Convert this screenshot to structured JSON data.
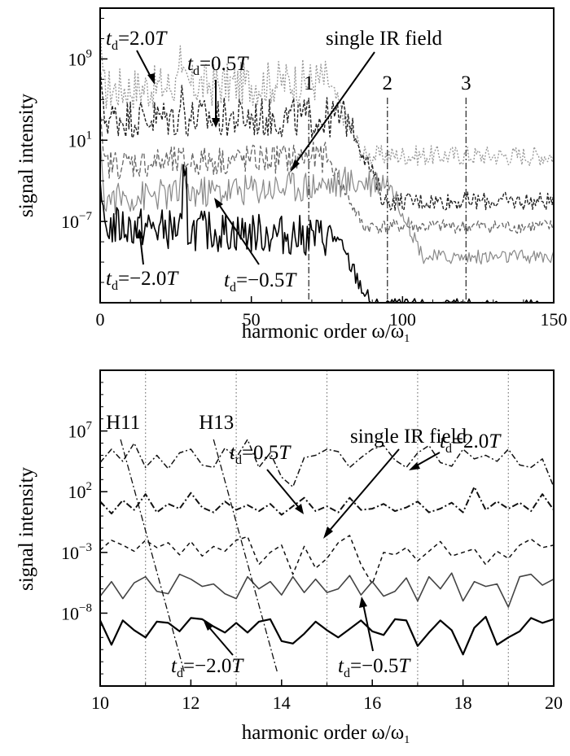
{
  "chart_data": [
    {
      "type": "line",
      "panel": "top",
      "xlabel": "harmonic order ω/ω",
      "xlabel_sub": "1",
      "ylabel": "signal intensity",
      "xlim": [
        0,
        150
      ],
      "ylog_range": [
        -15,
        14
      ],
      "x_ticks": [
        0,
        50,
        100,
        150
      ],
      "y_ticks": [
        {
          "exp": 9,
          "label": "10",
          "sup": "9"
        },
        {
          "exp": 1,
          "label": "10",
          "sup": "1"
        },
        {
          "exp": -7,
          "label": "10",
          "sup": "−7"
        }
      ],
      "series": [
        {
          "name": "t_d=2.0T",
          "color": "#9a9a9a",
          "dash": "2,2",
          "width": 1.4,
          "base": 6.5,
          "plateau_slope": 0.012,
          "cutoff": 75,
          "floor": -0.5,
          "noise": 2.2,
          "spikes": [
            {
              "x": 26,
              "h": 3
            }
          ]
        },
        {
          "name": "t_d=0.5T",
          "color": "#222222",
          "dash": "4,2",
          "width": 1.4,
          "base": 3.2,
          "plateau_slope": 0.0,
          "cutoff": 82,
          "floor": -5.0,
          "noise": 2.0,
          "spikes": [
            {
              "x": 27,
              "h": 2
            }
          ]
        },
        {
          "name": "single IR field",
          "color": "#666666",
          "dash": "6,3",
          "width": 1.3,
          "base": -1.0,
          "plateau_slope": 0.01,
          "cutoff": 75,
          "floor": -7.5,
          "noise": 1.5,
          "spikes": []
        },
        {
          "name": "t_d=-0.5T",
          "color": "#888888",
          "dash": "",
          "width": 1.2,
          "base": -4.0,
          "plateau_slope": 0.02,
          "cutoff": 95,
          "floor": -10.5,
          "noise": 1.6,
          "spikes": [
            {
              "x": 27,
              "h": 2
            }
          ]
        },
        {
          "name": "t_d=-2.0T",
          "color": "#000000",
          "dash": "",
          "width": 1.6,
          "base": -8.0,
          "plateau_slope": -0.015,
          "cutoff": 78,
          "floor": -15.5,
          "noise": 2.0,
          "spikes": [
            {
              "x": 28,
              "h": 4.5
            }
          ]
        }
      ],
      "vlines": [
        {
          "x": 69,
          "label": "1"
        },
        {
          "x": 95,
          "label": "2"
        },
        {
          "x": 121,
          "label": "3"
        }
      ],
      "annotations": [
        {
          "text": "single IR field"
        },
        {
          "t": "t",
          "sub": "d",
          "rest": "=2.0",
          "T": "T"
        },
        {
          "t": "t",
          "sub": "d",
          "rest": "=0.5",
          "T": "T"
        },
        {
          "t": "t",
          "sub": "d",
          "rest": "=−2.0",
          "T": "T"
        },
        {
          "t": "t",
          "sub": "d",
          "rest": "=−0.5",
          "T": "T"
        }
      ]
    },
    {
      "type": "line",
      "panel": "bottom",
      "xlabel": "harmonic order ω/ω",
      "xlabel_sub": "1",
      "ylabel": "signal intensity",
      "xlim": [
        10,
        20
      ],
      "ylog_range": [
        -14,
        12
      ],
      "x_ticks": [
        10,
        12,
        14,
        16,
        18,
        20
      ],
      "y_ticks": [
        {
          "exp": 7,
          "label": "10",
          "sup": "7"
        },
        {
          "exp": 2,
          "label": "10",
          "sup": "2"
        },
        {
          "exp": -3,
          "label": "10",
          "sup": "−3"
        },
        {
          "exp": -8,
          "label": "10",
          "sup": "−8"
        }
      ],
      "dotted_x": [
        11,
        13,
        15,
        17,
        19
      ],
      "series": [
        {
          "name": "t_d=2.0T",
          "color": "#111111",
          "dash": "7,3,2,3",
          "width": 1.5,
          "values": [
            4.4,
            5.5,
            4.5,
            6.0,
            4.0,
            5.0,
            3.9,
            5.2,
            5.5,
            4.2,
            4.0,
            5.6,
            4.8,
            6.3,
            4.0,
            5.2,
            3.2,
            2.4,
            4.8,
            5.0,
            5.5,
            5.3,
            4.0,
            4.8,
            5.5,
            5.8,
            4.6,
            4.0,
            5.2,
            5.8,
            4.4,
            4.1,
            5.5,
            4.7,
            5.0,
            4.5,
            5.5,
            4.2,
            4.0,
            4.7,
            2.4
          ]
        },
        {
          "name": "t_d=0.5T",
          "color": "#111111",
          "dash": "8,3,2,3",
          "width": 2.0,
          "values": [
            1.2,
            0.2,
            1.3,
            0.5,
            1.8,
            0.3,
            1.0,
            0.6,
            1.9,
            0.7,
            0.3,
            1.2,
            0.5,
            0.9,
            0.4,
            1.0,
            0.1,
            0.8,
            1.5,
            0.4,
            0.8,
            0.3,
            1.5,
            0.5,
            0.6,
            1.0,
            0.4,
            0.7,
            1.2,
            0.3,
            0.6,
            1.1,
            0.3,
            2.4,
            0.5,
            1.2,
            0.6,
            1.1,
            0.4,
            1.8,
            0.5
          ]
        },
        {
          "name": "single IR field",
          "color": "#111111",
          "dash": "5,4",
          "width": 1.5,
          "values": [
            -2.8,
            -2.0,
            -2.4,
            -2.9,
            -2.0,
            -2.6,
            -2.2,
            -3.2,
            -2.1,
            -3.3,
            -2.5,
            -2.9,
            -2.0,
            -1.7,
            -4.0,
            -3.0,
            -2.4,
            -4.8,
            -2.5,
            -4.3,
            -3.5,
            -2.2,
            -1.6,
            -4.0,
            -5.6,
            -3.0,
            -3.2,
            -2.6,
            -3.7,
            -2.9,
            -2.1,
            -3.3,
            -3.0,
            -2.7,
            -4.0,
            -2.9,
            -3.5,
            -2.4,
            -1.9,
            -2.6,
            -2.4
          ]
        },
        {
          "name": "t_d=-0.5T",
          "color": "#444444",
          "dash": "",
          "width": 1.6,
          "values": [
            -6.6,
            -5.4,
            -6.8,
            -5.5,
            -5.0,
            -6.2,
            -6.4,
            -4.8,
            -5.2,
            -5.8,
            -5.6,
            -6.4,
            -6.8,
            -5.0,
            -6.0,
            -5.4,
            -6.5,
            -5.0,
            -6.3,
            -5.2,
            -6.3,
            -6.0,
            -4.9,
            -6.5,
            -5.4,
            -6.6,
            -6.2,
            -5.1,
            -7.0,
            -5.0,
            -6.0,
            -4.7,
            -7.0,
            -5.4,
            -5.8,
            -5.6,
            -7.5,
            -5.0,
            -4.8,
            -5.7,
            -5.2
          ]
        },
        {
          "name": "t_d=-2.0T",
          "color": "#000000",
          "dash": "",
          "width": 2.2,
          "values": [
            -8.6,
            -10.6,
            -8.6,
            -9.4,
            -10.0,
            -8.7,
            -8.8,
            -9.5,
            -8.4,
            -8.5,
            -9.1,
            -9.6,
            -8.8,
            -9.6,
            -8.7,
            -8.5,
            -10.3,
            -10.5,
            -9.7,
            -8.7,
            -9.4,
            -10.0,
            -9.3,
            -8.6,
            -9.5,
            -9.8,
            -8.5,
            -8.6,
            -10.7,
            -9.6,
            -8.6,
            -9.4,
            -11.4,
            -9.2,
            -8.3,
            -10.6,
            -10.0,
            -9.5,
            -8.4,
            -8.8,
            -8.5
          ]
        }
      ],
      "harmonic_lines": [
        {
          "label": "H11",
          "x_top": 10.45,
          "x_bot": 11.85
        },
        {
          "label": "H13",
          "x_top": 12.5,
          "x_bot": 13.9
        }
      ],
      "annotations": [
        {
          "text": "single IR field"
        },
        {
          "t": "t",
          "sub": "d",
          "rest": "=2.0",
          "T": "T"
        },
        {
          "t": "t",
          "sub": "d",
          "rest": "=0.5",
          "T": "T"
        },
        {
          "t": "t",
          "sub": "d",
          "rest": "=−2.0",
          "T": "T"
        },
        {
          "t": "t",
          "sub": "d",
          "rest": "=−0.5",
          "T": "T"
        }
      ]
    }
  ]
}
